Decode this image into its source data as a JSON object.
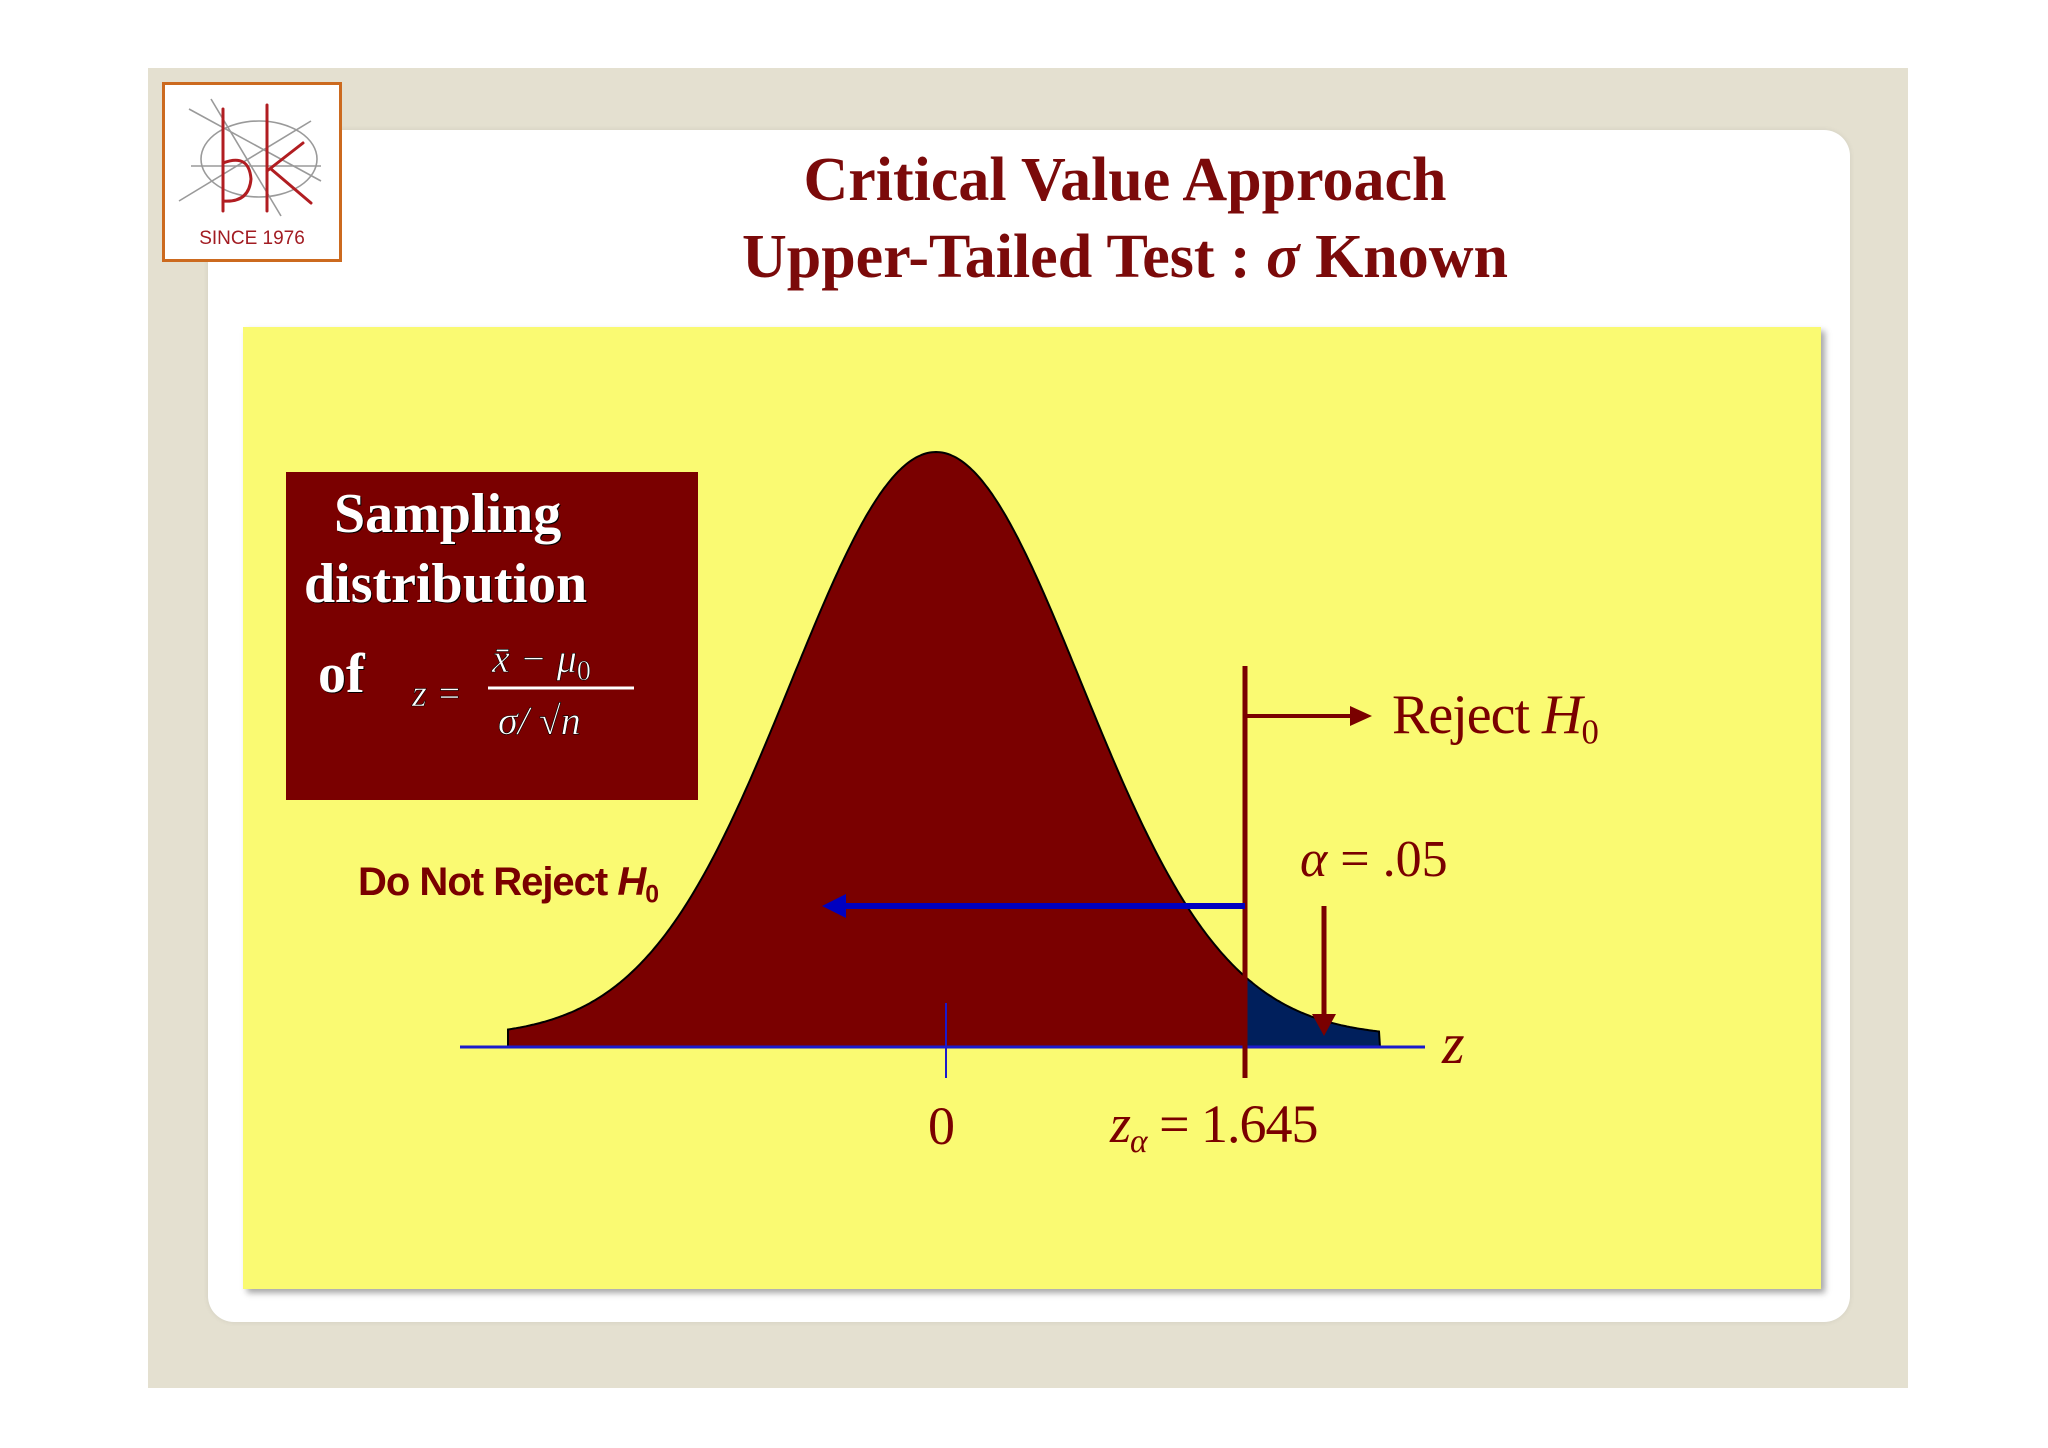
{
  "logo": {
    "icon": "bk-logo-icon",
    "since_text": "SINCE 1976",
    "border_color": "#cc6a1f"
  },
  "title": {
    "line1": "Critical Value Approach",
    "line2_prefix": "Upper-Tailed Test : ",
    "line2_sigma": "σ",
    "line2_suffix": " Known",
    "color": "#7b0a0a"
  },
  "info_box": {
    "line1": "Sampling",
    "line2": "distribution",
    "line3": "of",
    "formula": {
      "lhs": "z =",
      "numerator": "x̄ − μ",
      "numerator_sub": "0",
      "denominator": "σ/ √n"
    },
    "background": "#7a0000"
  },
  "diagram": {
    "do_not_reject_text": "Do Not Reject ",
    "do_not_reject_h": "H",
    "do_not_reject_sub": "0",
    "reject_text": "Reject ",
    "reject_h": "H",
    "reject_sub": "0",
    "alpha_symbol": "α",
    "alpha_value": " = .05",
    "zero_tick": "0",
    "z_alpha_symbol": "z",
    "z_alpha_sub": "α",
    "z_alpha_value": " = 1.645",
    "axis_label": "z",
    "curve_color": "#7a0000",
    "tail_color": "#001f5c",
    "arrow_color": "#0000c0",
    "panel_color": "#fafa72"
  }
}
